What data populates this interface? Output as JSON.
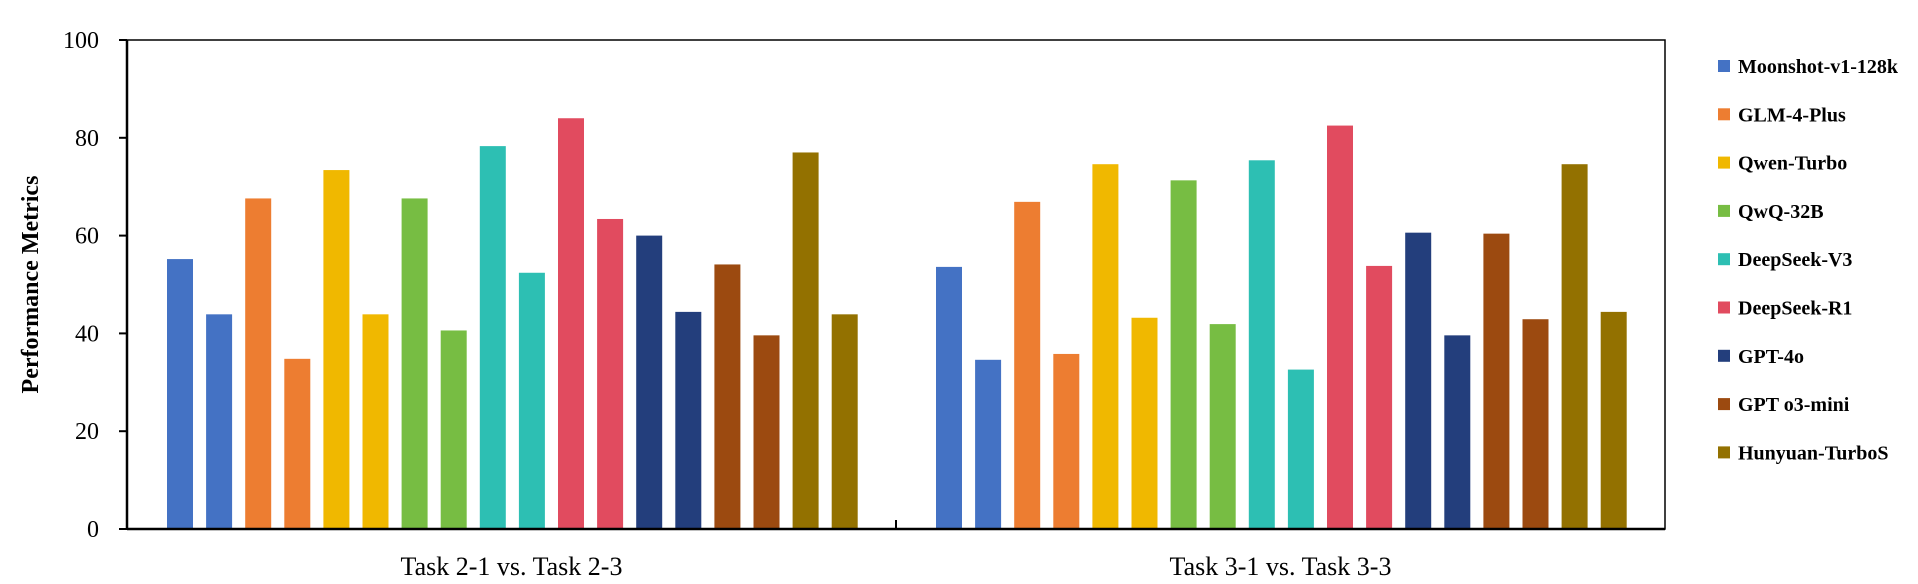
{
  "chart_data": {
    "type": "bar",
    "title": "",
    "xlabel": "",
    "ylabel": "Performance Metrics",
    "ylim": [
      0,
      100
    ],
    "yticks": [
      0,
      20,
      40,
      60,
      80,
      100
    ],
    "grid": false,
    "legend": "right",
    "categories": [
      "Task 2-1 vs. Task 2-3",
      "Task 3-1 vs. Task 3-3"
    ],
    "series": [
      {
        "name": "Moonshot-v1-128k",
        "color": "#4472C4",
        "values": [
          [
            55.2,
            43.9
          ],
          [
            53.6,
            34.6
          ]
        ]
      },
      {
        "name": "GLM-4-Plus",
        "color": "#ED7D31",
        "values": [
          [
            67.6,
            34.8
          ],
          [
            66.9,
            35.8
          ]
        ]
      },
      {
        "name": "Qwen-Turbo",
        "color": "#F0B800",
        "values": [
          [
            73.4,
            43.9
          ],
          [
            74.6,
            43.2
          ]
        ]
      },
      {
        "name": "QwQ-32B",
        "color": "#77BD43",
        "values": [
          [
            67.6,
            40.6
          ],
          [
            71.3,
            41.9
          ]
        ]
      },
      {
        "name": "DeepSeek-V3",
        "color": "#2DBFB3",
        "values": [
          [
            78.3,
            52.4
          ],
          [
            75.4,
            32.6
          ]
        ]
      },
      {
        "name": "DeepSeek-R1",
        "color": "#E14B5F",
        "values": [
          [
            84.0,
            63.4
          ],
          [
            82.5,
            53.8
          ]
        ]
      },
      {
        "name": "GPT-4o",
        "color": "#233E7C",
        "values": [
          [
            60.0,
            44.4
          ],
          [
            60.6,
            39.6
          ]
        ]
      },
      {
        "name": "GPT o3-mini",
        "color": "#9C4A10",
        "values": [
          [
            54.1,
            39.6
          ],
          [
            60.4,
            42.9
          ]
        ]
      },
      {
        "name": "Hunyuan-TurboS",
        "color": "#937100",
        "values": [
          [
            77.0,
            43.9
          ],
          [
            74.6,
            44.4
          ]
        ]
      }
    ]
  }
}
